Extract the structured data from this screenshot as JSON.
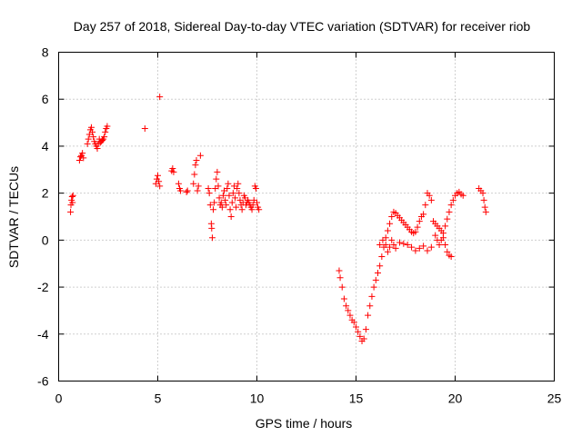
{
  "chart_data": {
    "type": "scatter",
    "title": "Day 257 of 2018, Sidereal Day-to-day VTEC variation (SDTVAR) for receiver riob",
    "xlabel": "GPS time / hours",
    "ylabel": "SDTVAR / TECUs",
    "xlim": [
      0,
      25
    ],
    "ylim": [
      -6,
      8
    ],
    "xticks": [
      "0",
      "5",
      "10",
      "15",
      "20",
      "25"
    ],
    "xtick_values": [
      0,
      5,
      10,
      15,
      20,
      25
    ],
    "yticks": [
      "-6",
      "-4",
      "-2",
      "0",
      "2",
      "4",
      "6",
      "8"
    ],
    "ytick_values": [
      -6,
      -4,
      -2,
      0,
      2,
      4,
      6,
      8
    ],
    "grid": true,
    "marker": "+",
    "color": "#ff0000",
    "series": [
      {
        "name": "SDTVAR",
        "points": [
          [
            0.6,
            1.2
          ],
          [
            0.62,
            1.5
          ],
          [
            0.65,
            1.7
          ],
          [
            0.68,
            1.85
          ],
          [
            0.7,
            1.6
          ],
          [
            0.72,
            1.9
          ],
          [
            1.05,
            3.4
          ],
          [
            1.1,
            3.55
          ],
          [
            1.15,
            3.6
          ],
          [
            1.2,
            3.7
          ],
          [
            1.25,
            3.5
          ],
          [
            1.45,
            4.1
          ],
          [
            1.5,
            4.3
          ],
          [
            1.55,
            4.5
          ],
          [
            1.6,
            4.7
          ],
          [
            1.65,
            4.8
          ],
          [
            1.7,
            4.6
          ],
          [
            1.75,
            4.4
          ],
          [
            1.8,
            4.2
          ],
          [
            1.85,
            4.1
          ],
          [
            1.9,
            4.0
          ],
          [
            1.95,
            3.9
          ],
          [
            2.0,
            4.1
          ],
          [
            2.05,
            4.3
          ],
          [
            2.1,
            4.15
          ],
          [
            2.15,
            4.2
          ],
          [
            2.2,
            4.25
          ],
          [
            2.25,
            4.3
          ],
          [
            2.3,
            4.4
          ],
          [
            2.35,
            4.6
          ],
          [
            2.4,
            4.75
          ],
          [
            2.45,
            4.85
          ],
          [
            4.35,
            4.75
          ],
          [
            4.9,
            2.4
          ],
          [
            4.95,
            2.6
          ],
          [
            5.0,
            2.75
          ],
          [
            5.05,
            2.5
          ],
          [
            5.1,
            2.3
          ],
          [
            5.1,
            6.1
          ],
          [
            5.7,
            2.95
          ],
          [
            5.75,
            3.05
          ],
          [
            5.8,
            2.9
          ],
          [
            6.05,
            2.4
          ],
          [
            6.1,
            2.2
          ],
          [
            6.15,
            2.1
          ],
          [
            6.45,
            2.05
          ],
          [
            6.5,
            2.1
          ],
          [
            6.8,
            2.4
          ],
          [
            6.85,
            2.8
          ],
          [
            6.9,
            3.2
          ],
          [
            6.95,
            3.4
          ],
          [
            7.0,
            2.1
          ],
          [
            7.05,
            2.3
          ],
          [
            7.15,
            3.6
          ],
          [
            7.55,
            2.2
          ],
          [
            7.6,
            2.0
          ],
          [
            7.65,
            1.5
          ],
          [
            7.7,
            0.7
          ],
          [
            7.72,
            0.5
          ],
          [
            7.75,
            0.1
          ],
          [
            7.8,
            1.3
          ],
          [
            7.85,
            1.6
          ],
          [
            7.9,
            2.2
          ],
          [
            7.95,
            2.6
          ],
          [
            8.0,
            2.9
          ],
          [
            8.05,
            2.3
          ],
          [
            8.1,
            1.8
          ],
          [
            8.15,
            1.5
          ],
          [
            8.2,
            1.6
          ],
          [
            8.25,
            1.4
          ],
          [
            8.3,
            1.9
          ],
          [
            8.35,
            2.1
          ],
          [
            8.4,
            1.7
          ],
          [
            8.45,
            1.5
          ],
          [
            8.5,
            2.2
          ],
          [
            8.55,
            2.4
          ],
          [
            8.6,
            1.9
          ],
          [
            8.65,
            1.3
          ],
          [
            8.7,
            1.0
          ],
          [
            8.75,
            1.6
          ],
          [
            8.8,
            2.0
          ],
          [
            8.85,
            2.3
          ],
          [
            8.9,
            1.8
          ],
          [
            8.95,
            1.4
          ],
          [
            9.0,
            2.2
          ],
          [
            9.05,
            2.4
          ],
          [
            9.1,
            2.0
          ],
          [
            9.15,
            1.7
          ],
          [
            9.2,
            1.5
          ],
          [
            9.25,
            1.3
          ],
          [
            9.3,
            1.6
          ],
          [
            9.35,
            1.9
          ],
          [
            9.4,
            1.8
          ],
          [
            9.45,
            1.5
          ],
          [
            9.5,
            1.6
          ],
          [
            9.55,
            1.7
          ],
          [
            9.6,
            1.6
          ],
          [
            9.65,
            1.5
          ],
          [
            9.7,
            1.4
          ],
          [
            9.75,
            1.3
          ],
          [
            9.8,
            1.5
          ],
          [
            9.85,
            1.7
          ],
          [
            9.9,
            2.3
          ],
          [
            9.95,
            2.2
          ],
          [
            10.0,
            1.6
          ],
          [
            10.05,
            1.4
          ],
          [
            10.1,
            1.3
          ],
          [
            14.15,
            -1.3
          ],
          [
            14.2,
            -1.6
          ],
          [
            14.3,
            -2.0
          ],
          [
            14.4,
            -2.5
          ],
          [
            14.5,
            -2.8
          ],
          [
            14.6,
            -3.0
          ],
          [
            14.7,
            -3.2
          ],
          [
            14.8,
            -3.4
          ],
          [
            14.9,
            -3.5
          ],
          [
            15.0,
            -3.7
          ],
          [
            15.1,
            -3.9
          ],
          [
            15.2,
            -4.1
          ],
          [
            15.3,
            -4.3
          ],
          [
            15.4,
            -4.2
          ],
          [
            15.5,
            -3.8
          ],
          [
            15.6,
            -3.2
          ],
          [
            15.7,
            -2.8
          ],
          [
            15.8,
            -2.4
          ],
          [
            15.9,
            -2.0
          ],
          [
            16.0,
            -1.7
          ],
          [
            16.1,
            -1.4
          ],
          [
            16.2,
            -1.1
          ],
          [
            16.3,
            -0.7
          ],
          [
            16.4,
            -0.3
          ],
          [
            16.5,
            0.1
          ],
          [
            16.6,
            0.4
          ],
          [
            16.7,
            0.7
          ],
          [
            16.8,
            1.0
          ],
          [
            16.9,
            1.2
          ],
          [
            17.0,
            1.15
          ],
          [
            17.1,
            1.05
          ],
          [
            17.2,
            0.95
          ],
          [
            17.3,
            0.85
          ],
          [
            17.4,
            0.75
          ],
          [
            17.5,
            0.65
          ],
          [
            17.6,
            0.55
          ],
          [
            17.7,
            0.45
          ],
          [
            17.8,
            0.35
          ],
          [
            17.9,
            0.3
          ],
          [
            18.0,
            0.35
          ],
          [
            18.1,
            0.55
          ],
          [
            18.2,
            0.8
          ],
          [
            18.3,
            1.0
          ],
          [
            18.4,
            1.1
          ],
          [
            16.2,
            -0.2
          ],
          [
            16.35,
            0.0
          ],
          [
            16.5,
            -0.2
          ],
          [
            16.6,
            -0.5
          ],
          [
            16.7,
            -0.3
          ],
          [
            16.8,
            0.0
          ],
          [
            16.9,
            -0.2
          ],
          [
            17.0,
            -0.35
          ],
          [
            17.2,
            -0.1
          ],
          [
            17.4,
            -0.15
          ],
          [
            17.6,
            -0.2
          ],
          [
            17.8,
            -0.3
          ],
          [
            18.0,
            -0.45
          ],
          [
            18.2,
            -0.35
          ],
          [
            18.4,
            -0.25
          ],
          [
            18.6,
            -0.45
          ],
          [
            18.8,
            -0.3
          ],
          [
            18.5,
            1.5
          ],
          [
            18.6,
            2.0
          ],
          [
            18.7,
            1.9
          ],
          [
            18.8,
            1.7
          ],
          [
            18.9,
            0.8
          ],
          [
            19.0,
            0.7
          ],
          [
            19.1,
            0.6
          ],
          [
            19.2,
            0.5
          ],
          [
            19.3,
            0.4
          ],
          [
            19.4,
            0.1
          ],
          [
            19.5,
            -0.2
          ],
          [
            19.6,
            -0.5
          ],
          [
            19.7,
            -0.65
          ],
          [
            19.8,
            -0.7
          ],
          [
            19.0,
            0.2
          ],
          [
            19.1,
            0.0
          ],
          [
            19.2,
            -0.2
          ],
          [
            19.3,
            0.0
          ],
          [
            19.4,
            0.3
          ],
          [
            19.5,
            0.6
          ],
          [
            19.6,
            0.9
          ],
          [
            19.7,
            1.2
          ],
          [
            19.8,
            1.5
          ],
          [
            19.9,
            1.7
          ],
          [
            20.0,
            1.9
          ],
          [
            20.1,
            2.0
          ],
          [
            20.2,
            2.05
          ],
          [
            20.3,
            1.95
          ],
          [
            20.4,
            1.9
          ],
          [
            21.2,
            2.2
          ],
          [
            21.3,
            2.1
          ],
          [
            21.4,
            2.0
          ],
          [
            21.45,
            1.7
          ],
          [
            21.5,
            1.4
          ],
          [
            21.55,
            1.2
          ]
        ]
      }
    ]
  }
}
